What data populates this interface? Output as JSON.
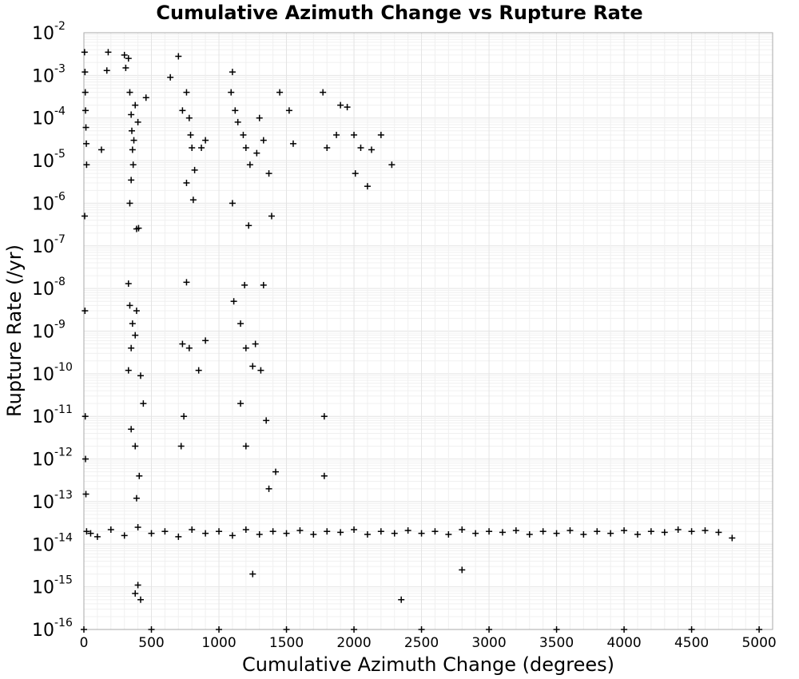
{
  "chart_data": {
    "type": "scatter",
    "title": "Cumulative Azimuth Change vs Rupture Rate",
    "xlabel": "Cumulative Azimuth Change (degrees)",
    "ylabel": "Rupture Rate (/yr)",
    "xlim": [
      0,
      5100
    ],
    "ylim_log10": [
      -16,
      -2
    ],
    "y_scale": "log",
    "grid": true,
    "marker": "plus",
    "x_ticks": [
      "0",
      "500",
      "1000",
      "1500",
      "2000",
      "2500",
      "3000",
      "3500",
      "4000",
      "4500",
      "5000"
    ],
    "y_ticks": [
      {
        "base": "10",
        "exp": "-2"
      },
      {
        "base": "10",
        "exp": "-3"
      },
      {
        "base": "10",
        "exp": "-4"
      },
      {
        "base": "10",
        "exp": "-5"
      },
      {
        "base": "10",
        "exp": "-6"
      },
      {
        "base": "10",
        "exp": "-7"
      },
      {
        "base": "10",
        "exp": "-8"
      },
      {
        "base": "10",
        "exp": "-9"
      },
      {
        "base": "10",
        "exp": "-10"
      },
      {
        "base": "10",
        "exp": "-11"
      },
      {
        "base": "10",
        "exp": "-12"
      },
      {
        "base": "10",
        "exp": "-13"
      },
      {
        "base": "10",
        "exp": "-14"
      },
      {
        "base": "10",
        "exp": "-15"
      },
      {
        "base": "10",
        "exp": "-16"
      }
    ],
    "series": [
      {
        "values": [
          [
            5,
            0.0035
          ],
          [
            8,
            0.0012
          ],
          [
            10,
            0.0004
          ],
          [
            12,
            0.00015
          ],
          [
            15,
            6e-05
          ],
          [
            18,
            2.5e-05
          ],
          [
            20,
            8e-06
          ],
          [
            6,
            5e-07
          ],
          [
            8,
            3e-09
          ],
          [
            10,
            1e-11
          ],
          [
            12,
            1e-12
          ],
          [
            15,
            1.5e-13
          ],
          [
            180,
            0.0035
          ],
          [
            170,
            0.0013
          ],
          [
            130,
            1.8e-05
          ],
          [
            300,
            0.003
          ],
          [
            310,
            0.0015
          ],
          [
            330,
            0.0025
          ],
          [
            340,
            0.0004
          ],
          [
            350,
            0.00012
          ],
          [
            355,
            5e-05
          ],
          [
            360,
            1.8e-05
          ],
          [
            365,
            8e-06
          ],
          [
            350,
            3.5e-06
          ],
          [
            340,
            1e-06
          ],
          [
            390,
            2.5e-07
          ],
          [
            405,
            2.6e-07
          ],
          [
            380,
            0.0002
          ],
          [
            400,
            8e-05
          ],
          [
            370,
            3e-05
          ],
          [
            330,
            1.3e-08
          ],
          [
            340,
            4e-09
          ],
          [
            360,
            1.5e-09
          ],
          [
            380,
            8e-10
          ],
          [
            350,
            4e-10
          ],
          [
            330,
            1.2e-10
          ],
          [
            390,
            3e-09
          ],
          [
            420,
            9e-11
          ],
          [
            440,
            2e-11
          ],
          [
            350,
            5e-12
          ],
          [
            380,
            2e-12
          ],
          [
            410,
            4e-13
          ],
          [
            390,
            1.2e-13
          ],
          [
            460,
            0.0003
          ],
          [
            640,
            0.0009
          ],
          [
            700,
            0.0028
          ],
          [
            730,
            0.00015
          ],
          [
            760,
            0.0004
          ],
          [
            780,
            0.0001
          ],
          [
            790,
            4e-05
          ],
          [
            800,
            2e-05
          ],
          [
            760,
            3e-06
          ],
          [
            820,
            6e-06
          ],
          [
            810,
            1.2e-06
          ],
          [
            870,
            2e-05
          ],
          [
            900,
            3e-05
          ],
          [
            760,
            1.4e-08
          ],
          [
            730,
            5e-10
          ],
          [
            780,
            4e-10
          ],
          [
            850,
            1.2e-10
          ],
          [
            900,
            6e-10
          ],
          [
            720,
            2e-12
          ],
          [
            740,
            1e-11
          ],
          [
            1100,
            0.0012
          ],
          [
            1090,
            0.0004
          ],
          [
            1120,
            0.00015
          ],
          [
            1140,
            8e-05
          ],
          [
            1180,
            4e-05
          ],
          [
            1200,
            2e-05
          ],
          [
            1230,
            8e-06
          ],
          [
            1100,
            1e-06
          ],
          [
            1220,
            3e-07
          ],
          [
            1300,
            0.0001
          ],
          [
            1330,
            3e-05
          ],
          [
            1280,
            1.5e-05
          ],
          [
            1390,
            5e-07
          ],
          [
            1370,
            5e-06
          ],
          [
            1110,
            5e-09
          ],
          [
            1190,
            1.2e-08
          ],
          [
            1330,
            1.2e-08
          ],
          [
            1270,
            5e-10
          ],
          [
            1160,
            1.5e-09
          ],
          [
            1200,
            4e-10
          ],
          [
            1250,
            1.5e-10
          ],
          [
            1310,
            1.2e-10
          ],
          [
            1160,
            2e-11
          ],
          [
            1200,
            2e-12
          ],
          [
            1350,
            8e-12
          ],
          [
            1420,
            5e-13
          ],
          [
            1370,
            2e-13
          ],
          [
            1450,
            0.0004
          ],
          [
            1520,
            0.00015
          ],
          [
            1550,
            2.5e-05
          ],
          [
            1770,
            0.0004
          ],
          [
            1800,
            2e-05
          ],
          [
            1870,
            4e-05
          ],
          [
            1900,
            0.0002
          ],
          [
            1950,
            0.00018
          ],
          [
            2000,
            4e-05
          ],
          [
            2050,
            2e-05
          ],
          [
            2130,
            1.8e-05
          ],
          [
            2200,
            4e-05
          ],
          [
            2280,
            8e-06
          ],
          [
            2010,
            5e-06
          ],
          [
            2100,
            2.5e-06
          ],
          [
            1780,
            1e-11
          ],
          [
            1780,
            4e-13
          ],
          [
            20,
            2e-14
          ],
          [
            50,
            1.8e-14
          ],
          [
            100,
            1.5e-14
          ],
          [
            200,
            2.2e-14
          ],
          [
            300,
            1.6e-14
          ],
          [
            400,
            2.5e-14
          ],
          [
            500,
            1.8e-14
          ],
          [
            600,
            2e-14
          ],
          [
            700,
            1.5e-14
          ],
          [
            800,
            2.2e-14
          ],
          [
            900,
            1.8e-14
          ],
          [
            1000,
            2e-14
          ],
          [
            1100,
            1.6e-14
          ],
          [
            1200,
            2.2e-14
          ],
          [
            1300,
            1.7e-14
          ],
          [
            1400,
            2e-14
          ],
          [
            1500,
            1.8e-14
          ],
          [
            1600,
            2.1e-14
          ],
          [
            1700,
            1.7e-14
          ],
          [
            1800,
            2e-14
          ],
          [
            1900,
            1.9e-14
          ],
          [
            2000,
            2.2e-14
          ],
          [
            2100,
            1.7e-14
          ],
          [
            2200,
            2e-14
          ],
          [
            2300,
            1.8e-14
          ],
          [
            2400,
            2.1e-14
          ],
          [
            2500,
            1.8e-14
          ],
          [
            2600,
            2e-14
          ],
          [
            2700,
            1.7e-14
          ],
          [
            2800,
            2.2e-14
          ],
          [
            2900,
            1.8e-14
          ],
          [
            3000,
            2e-14
          ],
          [
            3100,
            1.9e-14
          ],
          [
            3200,
            2.1e-14
          ],
          [
            3300,
            1.7e-14
          ],
          [
            3400,
            2e-14
          ],
          [
            3500,
            1.8e-14
          ],
          [
            3600,
            2.1e-14
          ],
          [
            3700,
            1.7e-14
          ],
          [
            3800,
            2e-14
          ],
          [
            3900,
            1.8e-14
          ],
          [
            4000,
            2.1e-14
          ],
          [
            4100,
            1.7e-14
          ],
          [
            4200,
            2e-14
          ],
          [
            4300,
            1.9e-14
          ],
          [
            4400,
            2.2e-14
          ],
          [
            4500,
            2e-14
          ],
          [
            4600,
            2.1e-14
          ],
          [
            4700,
            1.9e-14
          ],
          [
            4800,
            1.4e-14
          ],
          [
            2350,
            5e-16
          ],
          [
            2800,
            2.5e-15
          ],
          [
            1250,
            2e-15
          ],
          [
            400,
            1.1e-15
          ],
          [
            420,
            5e-16
          ],
          [
            380,
            7e-16
          ],
          [
            0,
            1e-16
          ],
          [
            500,
            1e-16
          ],
          [
            1000,
            1e-16
          ],
          [
            1500,
            1e-16
          ],
          [
            2000,
            1e-16
          ],
          [
            2500,
            1e-16
          ],
          [
            3000,
            1e-16
          ],
          [
            3500,
            1e-16
          ],
          [
            4000,
            1e-16
          ],
          [
            4500,
            1e-16
          ],
          [
            5000,
            1e-16
          ]
        ]
      }
    ]
  }
}
